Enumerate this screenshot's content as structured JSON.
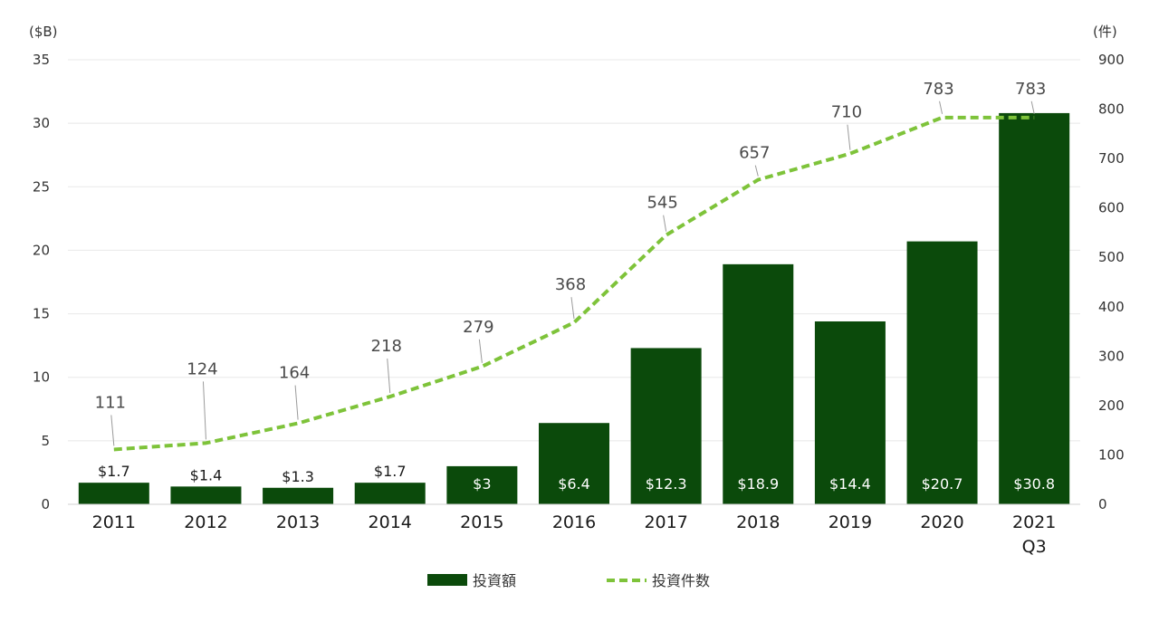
{
  "colors": {
    "bar": "#0b4a0b",
    "line": "#7ec33a",
    "leader": "#9a9a9a",
    "bar_label_inside": "#ffffff",
    "bar_label_above": "#1a1a1a"
  },
  "chart_data": {
    "type": "bar",
    "categories": [
      "2011",
      "2012",
      "2013",
      "2014",
      "2015",
      "2016",
      "2017",
      "2018",
      "2019",
      "2020",
      "2021"
    ],
    "category_sublabels": [
      "",
      "",
      "",
      "",
      "",
      "",
      "",
      "",
      "",
      "",
      "Q3"
    ],
    "series": [
      {
        "name": "投資額",
        "type": "bar",
        "axis": "left",
        "values": [
          1.7,
          1.4,
          1.3,
          1.7,
          3,
          6.4,
          12.3,
          18.9,
          14.4,
          20.7,
          30.8
        ],
        "labels": [
          "$1.7",
          "$1.4",
          "$1.3",
          "$1.7",
          "$3",
          "$6.4",
          "$12.3",
          "$18.9",
          "$14.4",
          "$20.7",
          "$30.8"
        ]
      },
      {
        "name": "投資件数",
        "type": "line",
        "style": "dashed",
        "axis": "right",
        "values": [
          111,
          124,
          164,
          218,
          279,
          368,
          545,
          657,
          710,
          783,
          783
        ],
        "labels": [
          "111",
          "124",
          "164",
          "218",
          "279",
          "368",
          "545",
          "657",
          "710",
          "783",
          "783"
        ]
      }
    ],
    "y_left": {
      "unit": "($B)",
      "ylim": [
        0,
        35
      ],
      "ticks": [
        "0",
        "5",
        "10",
        "15",
        "20",
        "25",
        "30",
        "35"
      ]
    },
    "y_right": {
      "unit": "(件)",
      "ylim": [
        0,
        900
      ],
      "ticks": [
        "0",
        "100",
        "200",
        "300",
        "400",
        "500",
        "600",
        "700",
        "800",
        "900"
      ]
    },
    "grid": true,
    "legend_position": "bottom-center"
  }
}
